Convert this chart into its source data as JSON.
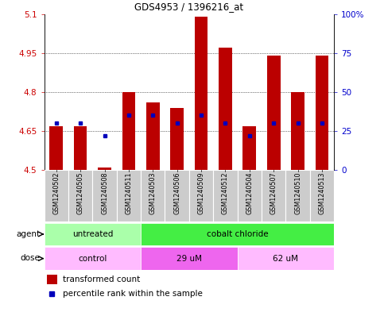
{
  "title": "GDS4953 / 1396216_at",
  "samples": [
    "GSM1240502",
    "GSM1240505",
    "GSM1240508",
    "GSM1240511",
    "GSM1240503",
    "GSM1240506",
    "GSM1240509",
    "GSM1240512",
    "GSM1240504",
    "GSM1240507",
    "GSM1240510",
    "GSM1240513"
  ],
  "transformed_counts": [
    4.67,
    4.67,
    4.51,
    4.8,
    4.76,
    4.74,
    5.09,
    4.97,
    4.67,
    4.94,
    4.8,
    4.94
  ],
  "percentile_ranks": [
    30,
    30,
    22,
    35,
    35,
    30,
    35,
    30,
    22,
    30,
    30,
    30
  ],
  "ylim_left": [
    4.5,
    5.1
  ],
  "ylim_right": [
    0,
    100
  ],
  "yticks_left": [
    4.5,
    4.65,
    4.8,
    4.95,
    5.1
  ],
  "yticks_right": [
    0,
    25,
    50,
    75,
    100
  ],
  "ytick_labels_right": [
    "0",
    "25",
    "50",
    "75",
    "100%"
  ],
  "bar_color": "#bb0000",
  "dot_color": "#0000bb",
  "bar_bottom": 4.5,
  "agent_groups": [
    {
      "label": "untreated",
      "start": 0,
      "end": 4,
      "color": "#aaffaa"
    },
    {
      "label": "cobalt chloride",
      "start": 4,
      "end": 12,
      "color": "#44ee44"
    }
  ],
  "dose_groups": [
    {
      "label": "control",
      "start": 0,
      "end": 4,
      "color": "#ffbbff"
    },
    {
      "label": "29 uM",
      "start": 4,
      "end": 8,
      "color": "#ee66ee"
    },
    {
      "label": "62 uM",
      "start": 8,
      "end": 12,
      "color": "#ffbbff"
    }
  ],
  "legend_bar_label": "transformed count",
  "legend_dot_label": "percentile rank within the sample",
  "agent_label": "agent",
  "dose_label": "dose",
  "left_tick_color": "#cc0000",
  "right_tick_color": "#0000cc",
  "sample_bg_color": "#cccccc",
  "plot_bg_color": "#ffffff"
}
